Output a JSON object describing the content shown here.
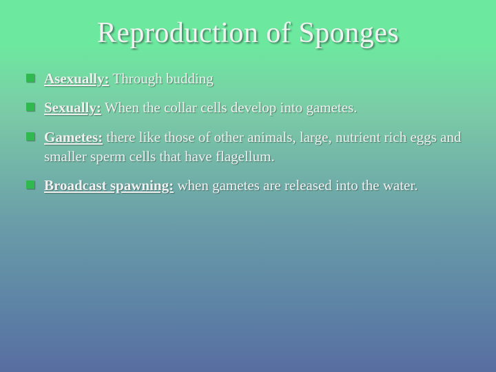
{
  "slide": {
    "title": "Reproduction of Sponges",
    "title_fontsize": 42,
    "title_color": "#f2f2f2",
    "body_fontsize": 21,
    "body_color": "#f0f0f0",
    "bullet_marker_color": "#2fb94f",
    "font_family": "Georgia, serif",
    "background_gradient_stops": [
      "#6de89f",
      "#7bcba7",
      "#6a9da8",
      "#5c80a5",
      "#586da0"
    ],
    "bullets": [
      {
        "term": "Asexually:",
        "rest": " Through budding"
      },
      {
        "term": "Sexually:",
        "rest": " When the collar cells develop into gametes."
      },
      {
        "term": "Gametes:",
        "rest": " there like those of other animals, large, nutrient rich eggs and smaller sperm cells that have flagellum."
      },
      {
        "term": "Broadcast spawning:",
        "rest": " when gametes are released into the water."
      }
    ]
  }
}
